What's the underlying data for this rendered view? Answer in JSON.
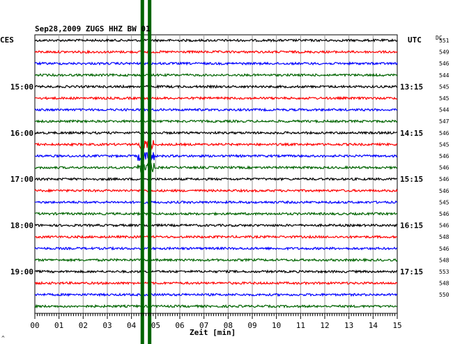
{
  "chart_data": {
    "type": "line",
    "title": "Sep28,2009  ZUGS HHZ BW 01",
    "left_zone_label": "CES",
    "right_zone_label": "UTC",
    "dc_label": "DC",
    "xlabel": "Zeit [min]",
    "xlim": [
      0,
      15
    ],
    "x_ticks": [
      "00",
      "01",
      "02",
      "03",
      "04",
      "05",
      "06",
      "07",
      "08",
      "09",
      "10",
      "11",
      "12",
      "13",
      "14",
      "15"
    ],
    "row_count": 24,
    "row_colors": [
      "#000000",
      "#ff0000",
      "#0000ff",
      "#006400"
    ],
    "left_labels": [
      {
        "row": 4,
        "text": "15:00"
      },
      {
        "row": 8,
        "text": "16:00"
      },
      {
        "row": 12,
        "text": "17:00"
      },
      {
        "row": 16,
        "text": "18:00"
      },
      {
        "row": 20,
        "text": "19:00"
      }
    ],
    "right_labels": [
      {
        "row": 4,
        "text": "13:15"
      },
      {
        "row": 8,
        "text": "14:15"
      },
      {
        "row": 12,
        "text": "15:15"
      },
      {
        "row": 16,
        "text": "16:15"
      },
      {
        "row": 20,
        "text": "17:15"
      }
    ],
    "dc_values": [
      551,
      549,
      546,
      544,
      545,
      545,
      544,
      547,
      546,
      545,
      546,
      546,
      546,
      546,
      545,
      546,
      546,
      548,
      546,
      548,
      553,
      548,
      550
    ],
    "markers": [
      {
        "x_min": 4.45,
        "color": "#006400"
      },
      {
        "x_min": 4.75,
        "color": "#006400"
      }
    ],
    "footer_mark": "^"
  }
}
